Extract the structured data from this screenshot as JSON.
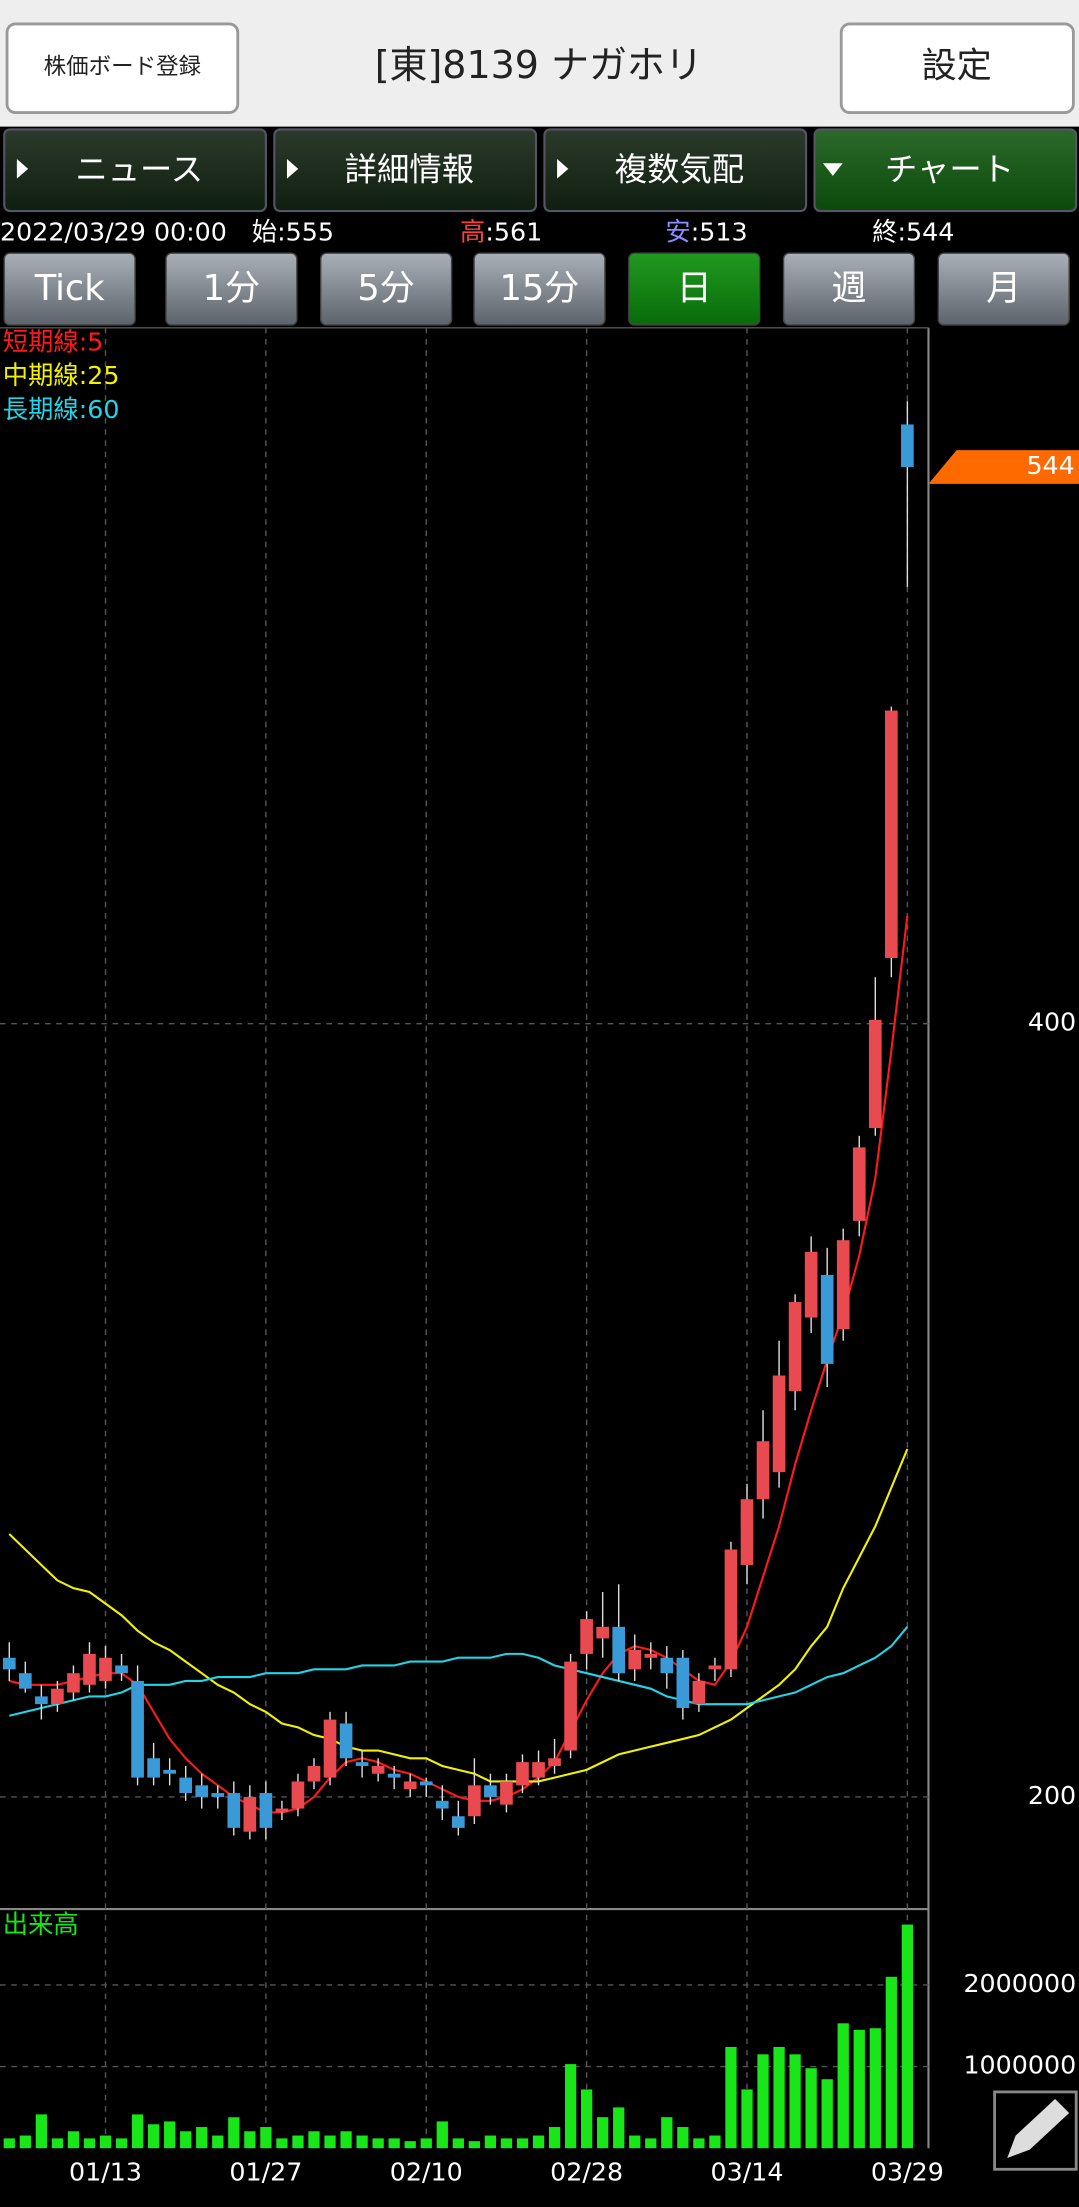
{
  "header": {
    "register_button": "株価ボード登録",
    "title": "[東]8139 ナガホリ",
    "settings_button": "設定"
  },
  "tabs": [
    "ニュース",
    "詳細情報",
    "複数気配",
    "チャート"
  ],
  "active_tab": 3,
  "quote": {
    "date": "2022/03/29 00:00",
    "open_label": "始:",
    "open": 555,
    "high_label": "高",
    "high_sep": ":",
    "high": 561,
    "low_label": "安",
    "low_sep": ":",
    "low": 513,
    "close_label": "終:",
    "close": 544
  },
  "periods": [
    "Tick",
    "1分",
    "5分",
    "15分",
    "日",
    "週",
    "月"
  ],
  "active_period": 4,
  "chart_data": {
    "type": "candlestick",
    "categories": [
      null,
      null,
      null,
      null,
      null,
      null,
      "01/13",
      null,
      null,
      null,
      null,
      null,
      null,
      null,
      null,
      null,
      "01/27",
      null,
      null,
      null,
      null,
      null,
      null,
      null,
      null,
      null,
      "02/10",
      null,
      null,
      null,
      null,
      null,
      null,
      null,
      null,
      null,
      "02/28",
      null,
      null,
      null,
      null,
      null,
      null,
      null,
      null,
      null,
      "03/14",
      null,
      null,
      null,
      null,
      null,
      null,
      null,
      null,
      null,
      "03/29"
    ],
    "open": [
      236,
      232,
      226,
      224,
      227,
      229,
      230,
      234,
      230,
      210,
      207,
      205,
      203,
      201,
      201,
      191,
      201,
      196,
      197,
      204,
      205,
      219,
      209,
      206,
      206,
      202,
      204,
      199,
      195,
      195,
      203,
      198,
      203,
      205,
      208,
      212,
      237,
      241,
      244,
      233,
      236,
      236,
      236,
      224,
      233,
      233,
      260,
      277,
      284,
      305,
      324,
      335,
      321,
      349,
      373,
      417,
      555
    ],
    "high": [
      240,
      235,
      229,
      230,
      234,
      240,
      239,
      237,
      234,
      214,
      210,
      208,
      206,
      203,
      204,
      203,
      204,
      199,
      206,
      210,
      222,
      222,
      212,
      210,
      208,
      206,
      205,
      203,
      199,
      210,
      206,
      206,
      211,
      212,
      215,
      237,
      248,
      253,
      255,
      242,
      240,
      239,
      238,
      232,
      236,
      266,
      281,
      300,
      318,
      330,
      345,
      342,
      347,
      371,
      412,
      482,
      561
    ],
    "low": [
      230,
      227,
      220,
      222,
      225,
      227,
      228,
      230,
      203,
      203,
      203,
      199,
      197,
      197,
      190,
      189,
      189,
      194,
      195,
      202,
      203,
      208,
      205,
      204,
      202,
      200,
      200,
      194,
      190,
      193,
      198,
      196,
      201,
      203,
      206,
      210,
      233,
      236,
      230,
      230,
      233,
      228,
      220,
      222,
      230,
      231,
      255,
      272,
      280,
      300,
      320,
      306,
      318,
      345,
      371,
      412,
      513
    ],
    "close": [
      233,
      228,
      224,
      228,
      232,
      237,
      236,
      232,
      205,
      205,
      206,
      201,
      200,
      200,
      192,
      200,
      192,
      197,
      204,
      208,
      220,
      210,
      208,
      208,
      205,
      204,
      203,
      197,
      192,
      203,
      200,
      204,
      209,
      209,
      210,
      235,
      246,
      244,
      232,
      238,
      237,
      232,
      223,
      230,
      234,
      264,
      277,
      292,
      309,
      328,
      341,
      312,
      344,
      368,
      401,
      481,
      544
    ],
    "up_color": "#e84a4f",
    "down_color": "#3a9ad8",
    "marker_color": "#ff6a00",
    "ylim": [
      171,
      580
    ],
    "yticks": [
      200,
      400
    ],
    "grid": true,
    "moving_averages": [
      {
        "name": "短期線:5",
        "color": "#ff1a1a",
        "values": [
          230,
          229,
          229,
          229,
          230,
          231,
          232,
          232,
          229,
          222,
          215,
          210,
          206,
          203,
          200,
          198,
          196,
          196,
          197,
          200,
          205,
          209,
          210,
          209,
          207,
          206,
          204,
          202,
          200,
          199,
          199,
          200,
          202,
          205,
          209,
          217,
          225,
          232,
          237,
          239,
          238,
          236,
          233,
          230,
          229,
          235,
          244,
          257,
          270,
          286,
          300,
          313,
          325,
          340,
          360,
          393,
          428
        ]
      },
      {
        "name": "中期線:25",
        "color": "#f2f200",
        "values": [
          268,
          264,
          260,
          256,
          254,
          253,
          250,
          247,
          243,
          240,
          238,
          235,
          232,
          229,
          227,
          224,
          222,
          219,
          218,
          216,
          215,
          213,
          212,
          212,
          211,
          210,
          210,
          208,
          207,
          206,
          204,
          204,
          204,
          204,
          205,
          206,
          207,
          209,
          211,
          212,
          213,
          214,
          215,
          216,
          218,
          220,
          223,
          226,
          229,
          233,
          239,
          244,
          254,
          262,
          270,
          280,
          290
        ]
      },
      {
        "name": "長期線:60",
        "color": "#22d4e8",
        "values": [
          221,
          222,
          223,
          224,
          225,
          226,
          226,
          227,
          229,
          229,
          229,
          230,
          230,
          231,
          231,
          231,
          232,
          232,
          232,
          233,
          233,
          233,
          234,
          234,
          234,
          235,
          235,
          235,
          236,
          236,
          236,
          237,
          237,
          236,
          234,
          233,
          232,
          231,
          230,
          229,
          228,
          226,
          225,
          224,
          224,
          224,
          224,
          225,
          226,
          227,
          229,
          231,
          232,
          234,
          236,
          239,
          244
        ]
      }
    ],
    "volume": {
      "name": "出来高",
      "color": "#19e619",
      "values": [
        120000,
        155000,
        414000,
        120000,
        207000,
        120000,
        155000,
        120000,
        414000,
        293000,
        328000,
        207000,
        259000,
        155000,
        379000,
        207000,
        259000,
        120000,
        155000,
        207000,
        155000,
        207000,
        155000,
        120000,
        120000,
        86000,
        120000,
        328000,
        120000,
        86000,
        155000,
        120000,
        120000,
        155000,
        259000,
        1030000,
        720000,
        380000,
        500000,
        155000,
        120000,
        380000,
        259000,
        120000,
        155000,
        1240000,
        720000,
        1150000,
        1240000,
        1150000,
        980000,
        845000,
        1530000,
        1450000,
        1470000,
        2100000,
        2740000
      ],
      "ylim": [
        0,
        2930000
      ],
      "yticks": [
        1000000,
        2000000
      ]
    }
  }
}
